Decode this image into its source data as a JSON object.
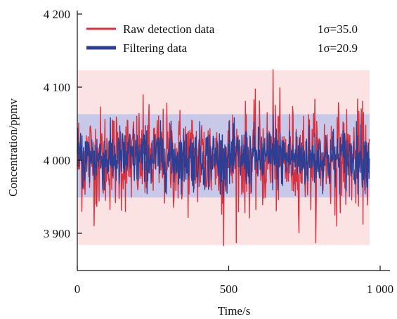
{
  "chart_data": {
    "type": "line",
    "xlabel": "Time/s",
    "ylabel": "Concentration/ppmv",
    "xlim": [
      0,
      1000
    ],
    "ylim": [
      3850,
      4200
    ],
    "x_ticks": [
      0,
      500,
      1000
    ],
    "x_tick_labels": [
      "0",
      "500",
      "1 000"
    ],
    "y_ticks": [
      3900,
      4000,
      4100,
      4200
    ],
    "y_tick_labels": [
      "3 900",
      "4 000",
      "4 100",
      "4 200"
    ],
    "grid": false,
    "legend_position": "top",
    "series": [
      {
        "name": "Raw detection data",
        "sigma_label": "1σ=35.0",
        "color": "#d9303e",
        "mean": 4002,
        "sigma": 35.0,
        "min": 3883,
        "max": 4124,
        "x_range": [
          0,
          965
        ],
        "band": [
          3884,
          4123
        ],
        "band_color": "#fbe3e3"
      },
      {
        "name": "Filtering data",
        "sigma_label": "1σ=20.9",
        "color": "#2d3f94",
        "mean": 4003,
        "sigma": 20.9,
        "min": 3950,
        "max": 4062,
        "x_range": [
          0,
          965
        ],
        "band": [
          3949,
          4063
        ],
        "band_color": "#c8c9e8"
      }
    ]
  }
}
